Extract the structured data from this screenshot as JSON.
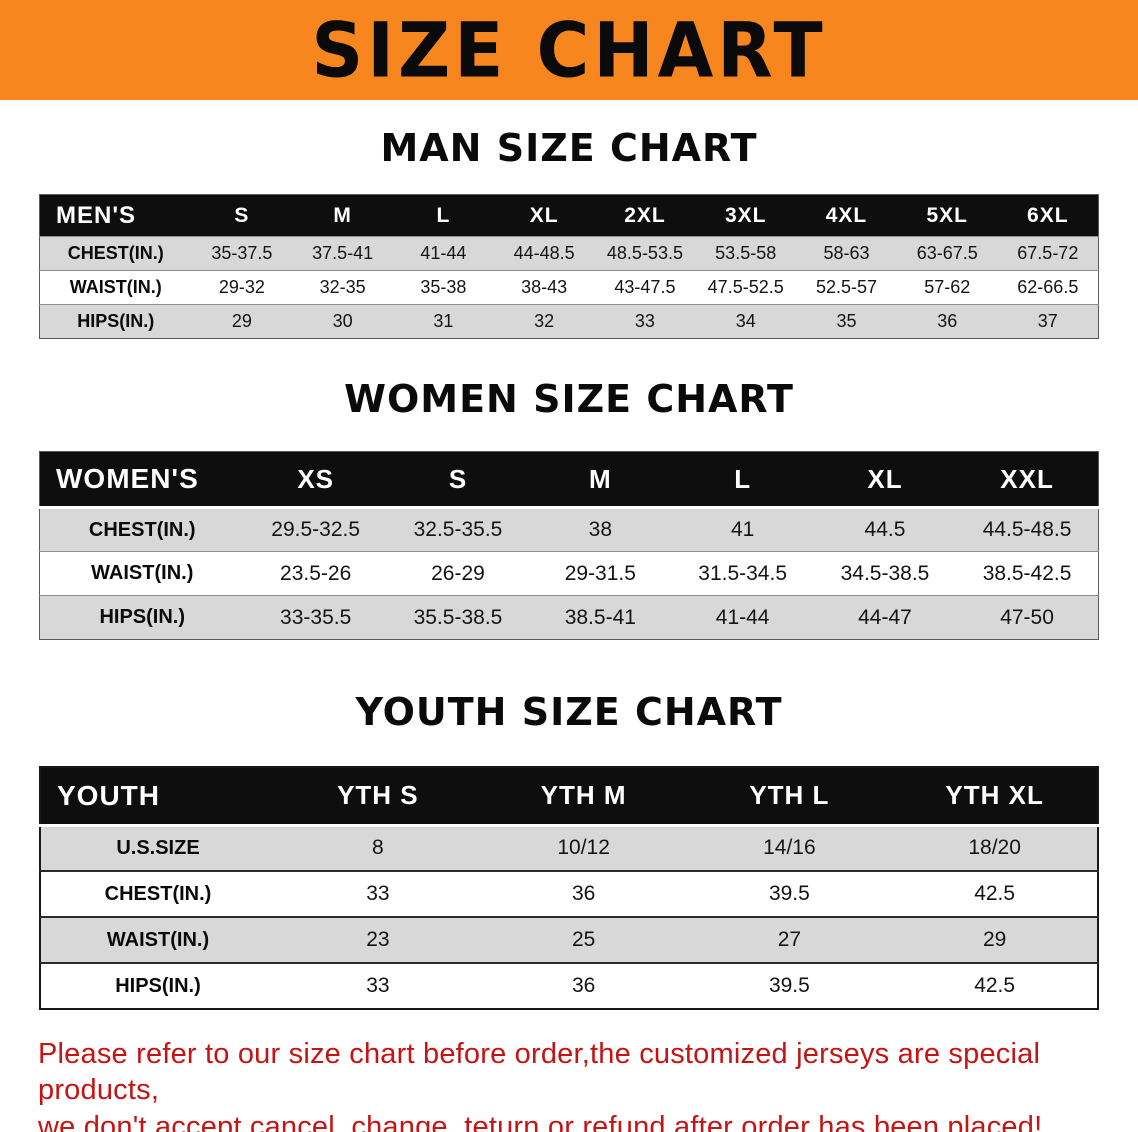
{
  "banner": {
    "title": "SIZE CHART"
  },
  "sections": [
    {
      "heading": "MAN SIZE CHART",
      "table": {
        "name": "mens",
        "header": [
          "MEN'S",
          "S",
          "M",
          "L",
          "XL",
          "2XL",
          "3XL",
          "4XL",
          "5XL",
          "6XL"
        ],
        "rows": [
          [
            "CHEST(IN.)",
            "35-37.5",
            "37.5-41",
            "41-44",
            "44-48.5",
            "48.5-53.5",
            "53.5-58",
            "58-63",
            "63-67.5",
            "67.5-72"
          ],
          [
            "WAIST(IN.)",
            "29-32",
            "32-35",
            "35-38",
            "38-43",
            "43-47.5",
            "47.5-52.5",
            "52.5-57",
            "57-62",
            "62-66.5"
          ],
          [
            "HIPS(IN.)",
            "29",
            "30",
            "31",
            "32",
            "33",
            "34",
            "35",
            "36",
            "37"
          ]
        ]
      }
    },
    {
      "heading": "WOMEN SIZE CHART",
      "table": {
        "name": "womens",
        "header": [
          "WOMEN'S",
          "XS",
          "S",
          "M",
          "L",
          "XL",
          "XXL"
        ],
        "rows": [
          [
            "CHEST(IN.)",
            "29.5-32.5",
            "32.5-35.5",
            "38",
            "41",
            "44.5",
            "44.5-48.5"
          ],
          [
            "WAIST(IN.)",
            "23.5-26",
            "26-29",
            "29-31.5",
            "31.5-34.5",
            "34.5-38.5",
            "38.5-42.5"
          ],
          [
            "HIPS(IN.)",
            "33-35.5",
            "35.5-38.5",
            "38.5-41",
            "41-44",
            "44-47",
            "47-50"
          ]
        ]
      }
    },
    {
      "heading": "YOUTH SIZE CHART",
      "table": {
        "name": "youth",
        "header": [
          "YOUTH",
          "YTH S",
          "YTH M",
          "YTH L",
          "YTH XL"
        ],
        "rows": [
          [
            "U.S.SIZE",
            "8",
            "10/12",
            "14/16",
            "18/20"
          ],
          [
            "CHEST(IN.)",
            "33",
            "36",
            "39.5",
            "42.5"
          ],
          [
            "WAIST(IN.)",
            "23",
            "25",
            "27",
            "29"
          ],
          [
            "HIPS(IN.)",
            "33",
            "36",
            "39.5",
            "42.5"
          ]
        ]
      }
    }
  ],
  "footer": {
    "lines": [
      "Please refer to our size chart before order,the customized jerseys are special products,",
      "we don't accept cancel, change, teturn or refund after order has been placed!"
    ]
  },
  "colors": {
    "banner_bg": "#F6861D",
    "header_bg": "#0E0E0E",
    "stripe": "#D8D8D8",
    "footer_red": "#C51414"
  }
}
